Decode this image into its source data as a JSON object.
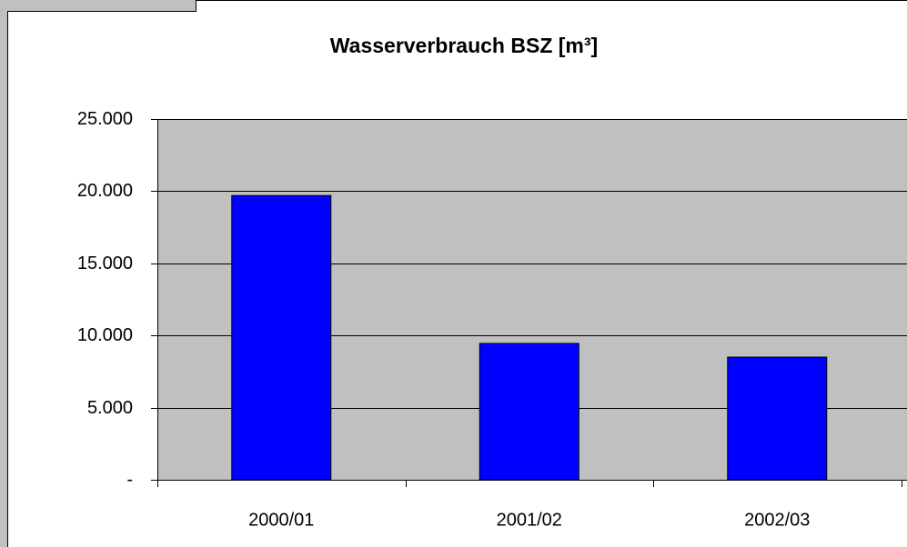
{
  "chart_data": {
    "type": "bar",
    "title": "Wasserverbrauch BSZ [m³]",
    "categories": [
      "2000/01",
      "2001/02",
      "2002/03"
    ],
    "values": [
      19700,
      9450,
      8500
    ],
    "color": "#0000ff",
    "ylim": [
      0,
      25000
    ],
    "yticks": [
      {
        "value": 0,
        "label": "-"
      },
      {
        "value": 5000,
        "label": "5.000"
      },
      {
        "value": 10000,
        "label": "10.000"
      },
      {
        "value": 15000,
        "label": "15.000"
      },
      {
        "value": 20000,
        "label": "20.000"
      },
      {
        "value": 25000,
        "label": "25.000"
      }
    ],
    "grid": true
  }
}
